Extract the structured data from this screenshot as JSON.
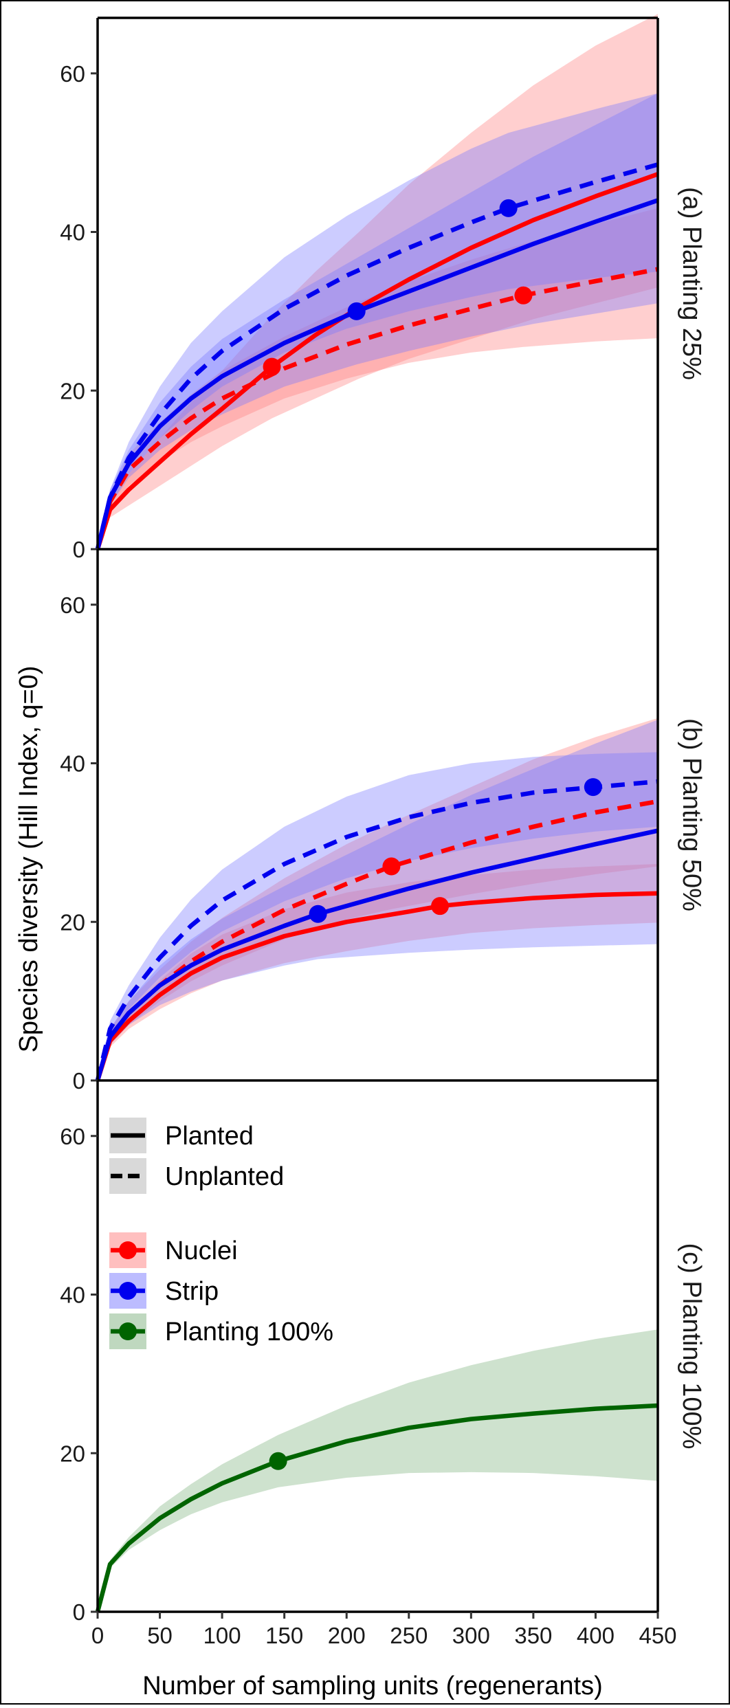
{
  "chart_data": {
    "type": "line",
    "subtype": "rarefaction-extrapolation curves with confidence ribbons",
    "xlabel": "Number of sampling units (regenerants)",
    "ylabel": "Species diversity (Hill Index, q=0)",
    "xlim": [
      0,
      450
    ],
    "ylim": [
      0,
      67
    ],
    "x_ticks": [
      0,
      50,
      100,
      150,
      200,
      250,
      300,
      350,
      400,
      450
    ],
    "y_ticks": [
      0,
      20,
      40,
      60
    ],
    "colors": {
      "nuclei": "#ff0000",
      "nuclei_ribbon": "#ff8080",
      "strip": "#0000ee",
      "strip_ribbon": "#7a7aff",
      "overlap": "#b00050",
      "planting100": "#006400",
      "planting100_ribbon": "#7fb27f",
      "ribbon_opacity": 0.38
    },
    "legend": {
      "position": "top-left of panel (c)",
      "linetype_entries": [
        {
          "label": "Planted",
          "linetype": "solid"
        },
        {
          "label": "Unplanted",
          "linetype": "dashed"
        }
      ],
      "color_entries": [
        {
          "label": "Nuclei",
          "color": "#ff0000"
        },
        {
          "label": "Strip",
          "color": "#0000ee"
        },
        {
          "label": "Planting 100%",
          "color": "#006400"
        }
      ]
    },
    "panels": [
      {
        "strip_label": "(a) Planting 25%",
        "series": [
          {
            "group": "Nuclei",
            "treatment": "Planted",
            "linetype": "solid",
            "color": "#ff0000",
            "x": [
              0,
              10,
              25,
              50,
              75,
              100,
              140,
              175,
              210,
              250,
              300,
              350,
              400,
              450
            ],
            "y": [
              0,
              5,
              7.5,
              11,
              14.5,
              17.7,
              23,
              27,
              30.5,
              34,
              38,
              41.5,
              44.5,
              47.3
            ],
            "ci_low": [
              0,
              4,
              5.5,
              8,
              10.5,
              13,
              16.5,
              19,
              21.5,
              24,
              26.5,
              29,
              31,
              33
            ],
            "ci_high": [
              0,
              6,
              9.5,
              14,
              18.5,
              22.5,
              29.5,
              35,
              40,
              46,
              52.5,
              58.5,
              63.5,
              67.5
            ],
            "observed": {
              "x": 140,
              "y": 23
            }
          },
          {
            "group": "Nuclei",
            "treatment": "Unplanted",
            "linetype": "dashed",
            "color": "#ff0000",
            "x": [
              0,
              10,
              25,
              50,
              75,
              100,
              150,
              200,
              250,
              300,
              342,
              400,
              450
            ],
            "y": [
              0,
              6,
              10,
              13.5,
              16.5,
              19,
              22.8,
              25.8,
              28.2,
              30.3,
              32,
              33.8,
              35.3
            ],
            "ci_low": [
              0,
              5,
              8,
              11,
              13.5,
              15.5,
              19,
              21.5,
              23.5,
              24.8,
              25.5,
              26.2,
              26.6
            ],
            "ci_high": [
              0,
              7,
              12,
              16,
              19.5,
              22.5,
              26.8,
              30.5,
              33.8,
              36.5,
              38.5,
              41,
              43
            ],
            "observed": {
              "x": 342,
              "y": 32
            }
          },
          {
            "group": "Strip",
            "treatment": "Planted",
            "linetype": "solid",
            "color": "#0000ee",
            "x": [
              0,
              10,
              25,
              50,
              75,
              100,
              150,
              208,
              250,
              300,
              350,
              400,
              450
            ],
            "y": [
              0,
              6.5,
              10.8,
              15.5,
              19,
              21.8,
              26,
              30,
              32.5,
              35.5,
              38.5,
              41.3,
              44
            ],
            "ci_low": [
              0,
              5.5,
              9,
              12.5,
              15,
              17,
              20.5,
              23.3,
              25,
              26.8,
              28.4,
              29.7,
              31
            ],
            "ci_high": [
              0,
              7.5,
              12.5,
              18.5,
              23,
              26.5,
              31.5,
              36.7,
              40.5,
              45,
              49.5,
              53.5,
              57.5
            ],
            "observed": {
              "x": 208,
              "y": 30
            }
          },
          {
            "group": "Strip",
            "treatment": "Unplanted",
            "linetype": "dashed",
            "color": "#0000ee",
            "x": [
              0,
              10,
              25,
              50,
              75,
              100,
              150,
              200,
              250,
              300,
              330,
              400,
              450
            ],
            "y": [
              0,
              6.5,
              11.5,
              17,
              21.5,
              25,
              30.3,
              34.5,
              38,
              41.2,
              43,
              46.3,
              48.5
            ],
            "ci_low": [
              0,
              5.5,
              9.5,
              14,
              17.5,
              20.5,
              24.8,
              27.8,
              30,
              31.8,
              32.8,
              34.2,
              35
            ],
            "ci_high": [
              0,
              7.5,
              13.5,
              20.5,
              26,
              30,
              36.8,
              42,
              46.5,
              50.5,
              52.5,
              55.5,
              57.5
            ],
            "observed": {
              "x": 330,
              "y": 43
            }
          }
        ]
      },
      {
        "strip_label": "(b) Planting 50%",
        "series": [
          {
            "group": "Nuclei",
            "treatment": "Planted",
            "linetype": "solid",
            "color": "#ff0000",
            "x": [
              0,
              10,
              25,
              50,
              75,
              100,
              150,
              200,
              250,
              275,
              300,
              350,
              400,
              450
            ],
            "y": [
              0,
              5,
              7.5,
              10.8,
              13.5,
              15.5,
              18.2,
              20,
              21.3,
              22,
              22.4,
              23,
              23.4,
              23.6
            ],
            "ci_low": [
              0,
              4.2,
              6.5,
              9,
              11,
              12.6,
              14.8,
              16.3,
              17.6,
              18.1,
              18.6,
              19.2,
              19.6,
              19.9
            ],
            "ci_high": [
              0,
              5.8,
              8.5,
              12.6,
              16,
              18.4,
              21.6,
              23.7,
              25,
              25.5,
              25.9,
              26.6,
              27,
              27.3
            ],
            "observed": {
              "x": 275,
              "y": 22
            }
          },
          {
            "group": "Nuclei",
            "treatment": "Unplanted",
            "linetype": "dashed",
            "color": "#ff0000",
            "x": [
              0,
              10,
              25,
              50,
              75,
              100,
              150,
              200,
              236,
              300,
              350,
              400,
              450
            ],
            "y": [
              0,
              5.5,
              8.5,
              12,
              15,
              17.5,
              21.5,
              24.8,
              27,
              30,
              32,
              33.8,
              35.2
            ],
            "ci_low": [
              0,
              4.5,
              7,
              10,
              12.5,
              14.5,
              17.8,
              20.3,
              21.6,
              23.5,
              24.8,
              26,
              27
            ],
            "ci_high": [
              0,
              6.5,
              10,
              14,
              17.5,
              20.5,
              25.5,
              29.8,
              32.5,
              37,
              40.5,
              43.3,
              45.7
            ],
            "observed": {
              "x": 236,
              "y": 27
            }
          },
          {
            "group": "Strip",
            "treatment": "Planted",
            "linetype": "solid",
            "color": "#0000ee",
            "x": [
              0,
              10,
              25,
              50,
              75,
              100,
              150,
              177,
              250,
              300,
              350,
              400,
              450
            ],
            "y": [
              0,
              5.5,
              8.5,
              12,
              14.5,
              16.5,
              19.5,
              21,
              24.2,
              26.2,
              28,
              29.8,
              31.5
            ],
            "ci_low": [
              0,
              4.5,
              7,
              9.5,
              11.2,
              12.6,
              14.5,
              15.3,
              16.1,
              16.5,
              16.8,
              17,
              17.2
            ],
            "ci_high": [
              0,
              6.5,
              10,
              14.5,
              17.8,
              20.4,
              24.5,
              26.7,
              32.3,
              36,
              39.3,
              42.5,
              45.5
            ],
            "observed": {
              "x": 177,
              "y": 21
            }
          },
          {
            "group": "Strip",
            "treatment": "Unplanted",
            "linetype": "dashed",
            "color": "#0000ee",
            "x": [
              0,
              10,
              25,
              50,
              75,
              100,
              150,
              200,
              250,
              300,
              350,
              400,
              450
            ],
            "y": [
              0,
              6.5,
              10.5,
              15.5,
              19.5,
              22.7,
              27.3,
              30.7,
              33.2,
              35,
              36.3,
              37,
              37.7
            ],
            "ci_low": [
              0,
              5.5,
              9,
              13,
              16.2,
              18.8,
              22.6,
              25.5,
              27.7,
              29.3,
              30.5,
              31.4,
              32
            ],
            "ci_high": [
              0,
              7.5,
              12,
              18,
              22.8,
              26.6,
              32,
              35.8,
              38.5,
              40,
              40.8,
              41.2,
              41.4
            ],
            "observed": {
              "x": 398,
              "y": 37
            }
          }
        ]
      },
      {
        "strip_label": "(c) Planting 100%",
        "series": [
          {
            "group": "Planting 100%",
            "treatment": "Planted",
            "linetype": "solid",
            "color": "#006400",
            "x": [
              0,
              10,
              25,
              50,
              75,
              100,
              145,
              200,
              250,
              300,
              350,
              400,
              450
            ],
            "y": [
              0,
              6,
              8.6,
              11.8,
              14.2,
              16.2,
              19,
              21.5,
              23.2,
              24.3,
              25,
              25.6,
              26
            ],
            "ci_low": [
              0,
              5.5,
              7.8,
              10.3,
              12.3,
              13.8,
              15.7,
              16.9,
              17.5,
              17.6,
              17.5,
              17.1,
              16.5
            ],
            "ci_high": [
              0,
              6.5,
              9.4,
              13.3,
              16.1,
              18.6,
              22.3,
              26,
              28.9,
              31.1,
              32.9,
              34.4,
              35.6
            ],
            "observed": {
              "x": 145,
              "y": 19
            }
          }
        ]
      }
    ]
  }
}
